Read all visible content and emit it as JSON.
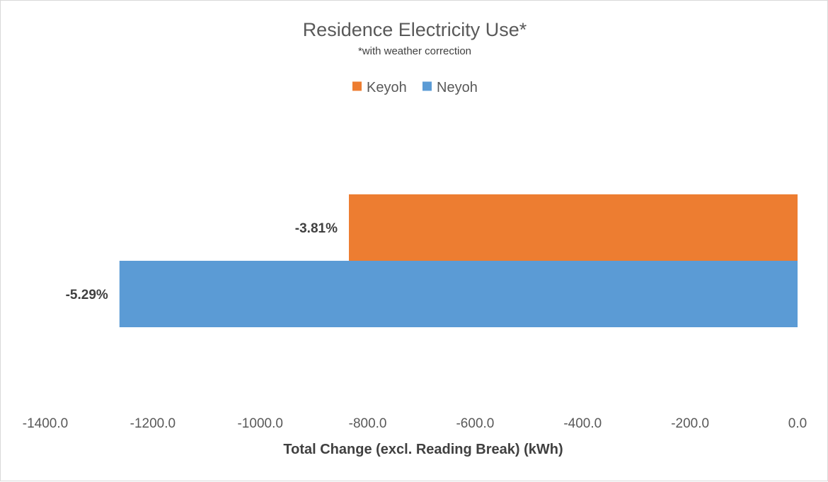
{
  "chart_data": {
    "type": "bar",
    "orientation": "horizontal",
    "title": "Residence Electricity Use*",
    "subtitle": "*with weather correction",
    "xlabel": "Total Change (excl. Reading Break) (kWh)",
    "ylabel": "",
    "xlim": [
      -1400,
      0
    ],
    "x_ticks": [
      -1400,
      -1200,
      -1000,
      -800,
      -600,
      -400,
      -200,
      0
    ],
    "x_tick_labels": [
      "-1400.0",
      "-1200.0",
      "-1000.0",
      "-800.0",
      "-600.0",
      "-400.0",
      "-200.0",
      "0.0"
    ],
    "grid": false,
    "legend_position": "top",
    "series": [
      {
        "name": "Keyoh",
        "values": [
          -835
        ],
        "color": "#ed7d31",
        "data_label": "-3.81%"
      },
      {
        "name": "Neyoh",
        "values": [
          -1262
        ],
        "color": "#5b9bd5",
        "data_label": "-5.29%"
      }
    ]
  }
}
